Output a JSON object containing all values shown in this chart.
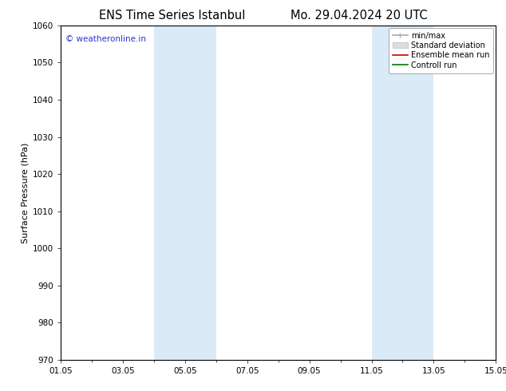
{
  "title_left": "ENS Time Series Istanbul",
  "title_right": "Mo. 29.04.2024 20 UTC",
  "ylabel": "Surface Pressure (hPa)",
  "ylim": [
    970,
    1060
  ],
  "yticks": [
    970,
    980,
    990,
    1000,
    1010,
    1020,
    1030,
    1040,
    1050,
    1060
  ],
  "x_start_day": 1,
  "x_end_day": 15,
  "xtick_labels": [
    "01.05",
    "03.05",
    "05.05",
    "07.05",
    "09.05",
    "11.05",
    "13.05",
    "15.05"
  ],
  "xtick_days": [
    1,
    3,
    5,
    7,
    9,
    11,
    13,
    15
  ],
  "shaded_bands": [
    {
      "x_start_day": 4,
      "x_end_day": 6,
      "color": "#daeaf7"
    },
    {
      "x_start_day": 11,
      "x_end_day": 13,
      "color": "#daeaf7"
    }
  ],
  "legend_entries": [
    {
      "label": "min/max",
      "color": "#aaaaaa",
      "lw": 1.2
    },
    {
      "label": "Standard deviation",
      "color": "#cccccc",
      "lw": 5
    },
    {
      "label": "Ensemble mean run",
      "color": "#cc0000",
      "lw": 1.2
    },
    {
      "label": "Controll run",
      "color": "#007700",
      "lw": 1.2
    }
  ],
  "watermark": "© weatheronline.in",
  "watermark_color": "#3333cc",
  "watermark_fontsize": 7.5,
  "bg_color": "#ffffff",
  "plot_bg_color": "#ffffff",
  "title_fontsize": 10.5,
  "tick_fontsize": 7.5,
  "ylabel_fontsize": 8,
  "legend_fontsize": 7
}
